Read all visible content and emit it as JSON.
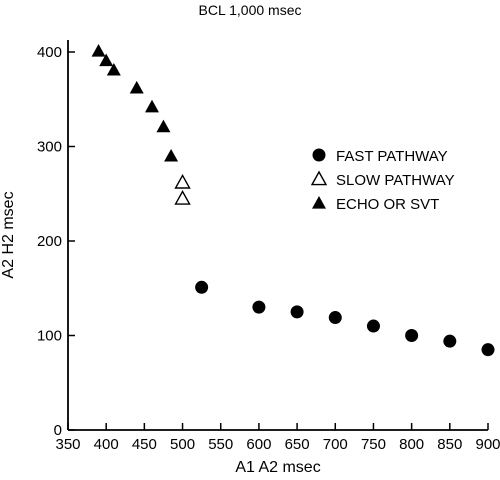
{
  "chart_data": {
    "type": "scatter",
    "title": "BCL 1,000 msec",
    "xlabel": "A1 A2 msec",
    "ylabel": "A2 H2 msec",
    "xlim": [
      350,
      900
    ],
    "ylim": [
      0,
      400
    ],
    "xticks": [
      350,
      400,
      450,
      500,
      550,
      600,
      650,
      700,
      750,
      800,
      850,
      900
    ],
    "yticks": [
      0,
      100,
      200,
      300,
      400
    ],
    "grid": false,
    "legend_position": "right",
    "series": [
      {
        "name": "FAST PATHWAY",
        "marker": "filled-circle",
        "color": "#000000",
        "points": [
          [
            525,
            151
          ],
          [
            600,
            130
          ],
          [
            650,
            125
          ],
          [
            700,
            119
          ],
          [
            750,
            110
          ],
          [
            800,
            100
          ],
          [
            850,
            94
          ],
          [
            900,
            85
          ]
        ]
      },
      {
        "name": "SLOW PATHWAY",
        "marker": "open-triangle",
        "color": "#000000",
        "points": [
          [
            500,
            262
          ],
          [
            500,
            245
          ]
        ]
      },
      {
        "name": "ECHO OR SVT",
        "marker": "filled-triangle",
        "color": "#000000",
        "points": [
          [
            390,
            401
          ],
          [
            400,
            391
          ],
          [
            410,
            381
          ],
          [
            440,
            362
          ],
          [
            460,
            342
          ],
          [
            475,
            321
          ],
          [
            485,
            290
          ]
        ]
      }
    ]
  }
}
